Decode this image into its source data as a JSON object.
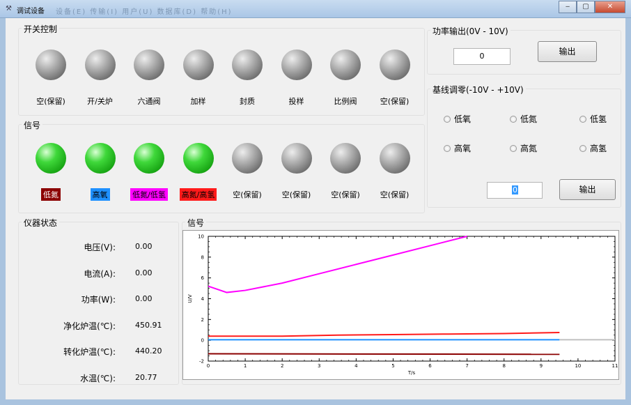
{
  "window": {
    "icon": "⚒",
    "title": "调试设备",
    "ghost_menu": "设备(E)  传输(I)  用户(U)  数据库(D)  帮助(H)",
    "minimize": "‒",
    "maximize": "▢",
    "close": "✕"
  },
  "switch_panel": {
    "title": "开关控制",
    "items": [
      "空(保留)",
      "开/关炉",
      "六通阀",
      "加样",
      "封质",
      "投样",
      "比例阀",
      "空(保留)"
    ]
  },
  "signal_panel": {
    "title": "信号",
    "items": [
      {
        "label": "低氮",
        "bg": "#8b0000",
        "fg": "#ffffff",
        "lit": true
      },
      {
        "label": "高氧",
        "bg": "#1e90ff",
        "fg": "#000000",
        "lit": true
      },
      {
        "label": "低氮/低氢",
        "bg": "#ff00ff",
        "fg": "#000000",
        "lit": true
      },
      {
        "label": "高氮/高氢",
        "bg": "#ff1a1a",
        "fg": "#000000",
        "lit": true
      },
      {
        "label": "空(保留)",
        "bg": "",
        "fg": "#000000",
        "lit": false
      },
      {
        "label": "空(保留)",
        "bg": "",
        "fg": "#000000",
        "lit": false
      },
      {
        "label": "空(保留)",
        "bg": "",
        "fg": "#000000",
        "lit": false
      },
      {
        "label": "空(保留)",
        "bg": "",
        "fg": "#000000",
        "lit": false
      }
    ]
  },
  "power_output": {
    "title": "功率输出(0V - 10V)",
    "value": "0",
    "button": "输出"
  },
  "baseline": {
    "title": "基线调零(-10V - +10V)",
    "radios": [
      "低氧",
      "低氮",
      "低氢",
      "高氧",
      "高氮",
      "高氢"
    ],
    "value": "0",
    "button": "输出"
  },
  "status": {
    "title": "仪器状态",
    "rows": [
      {
        "label": "电压(V):",
        "value": "0.00"
      },
      {
        "label": "电流(A):",
        "value": "0.00"
      },
      {
        "label": "功率(W):",
        "value": "0.00"
      },
      {
        "label": "净化炉温(℃):",
        "value": "450.91"
      },
      {
        "label": "转化炉温(℃):",
        "value": "440.20"
      },
      {
        "label": "水温(℃):",
        "value": "20.77"
      }
    ]
  },
  "chart_panel": {
    "title": "信号"
  },
  "chart_data": {
    "type": "line",
    "xlabel": "T/s",
    "ylabel": "U/V",
    "xlim": [
      0,
      11
    ],
    "ylim": [
      -2,
      10
    ],
    "x_ticks": [
      "0",
      "1",
      "2",
      "3",
      "4",
      "5",
      "6",
      "7",
      "8",
      "9",
      "10",
      "11"
    ],
    "y_ticks": [
      "-2",
      "0",
      "2",
      "4",
      "6",
      "8",
      "10"
    ],
    "series": [
      {
        "color": "#ff00ff",
        "x": [
          0,
          0.25,
          0.5,
          1,
          2,
          3,
          4,
          5,
          6,
          7
        ],
        "y": [
          5.2,
          4.9,
          4.6,
          4.8,
          5.5,
          6.4,
          7.3,
          8.2,
          9.1,
          10.0
        ]
      },
      {
        "color": "#ff1a1a",
        "x": [
          0,
          2,
          3.5,
          5,
          6.5,
          8,
          9.5
        ],
        "y": [
          0.4,
          0.4,
          0.5,
          0.55,
          0.6,
          0.65,
          0.75
        ]
      },
      {
        "color": "#1e90ff",
        "x": [
          0,
          9.5
        ],
        "y": [
          0.05,
          0.05
        ]
      },
      {
        "color": "#c0c0c0",
        "x": [
          9.5,
          11
        ],
        "y": [
          0.05,
          0.05
        ]
      },
      {
        "color": "#8b0000",
        "x": [
          0,
          9.5
        ],
        "y": [
          -1.3,
          -1.35
        ]
      }
    ]
  }
}
